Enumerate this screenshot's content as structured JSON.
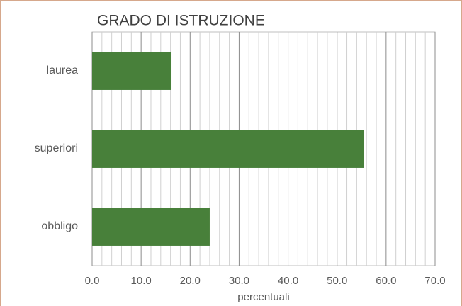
{
  "chart_data": {
    "type": "barh",
    "title": "GRADO DI ISTRUZIONE",
    "categories": [
      "laurea",
      "superiori",
      "obbligo"
    ],
    "values": [
      16.2,
      55.5,
      24.0
    ],
    "color": "#48803a",
    "xlabel": "percentuali",
    "xlim": [
      0,
      70
    ],
    "xticks": [
      {
        "value": 0,
        "label": "0.0"
      },
      {
        "value": 10,
        "label": "10.0"
      },
      {
        "value": 20,
        "label": "20.0"
      },
      {
        "value": 30,
        "label": "30.0"
      },
      {
        "value": 40,
        "label": "40.0"
      },
      {
        "value": 50,
        "label": "50.0"
      },
      {
        "value": 60,
        "label": "60.0"
      },
      {
        "value": 70,
        "label": "70.0"
      }
    ],
    "grid": true,
    "minor_grid": true
  }
}
